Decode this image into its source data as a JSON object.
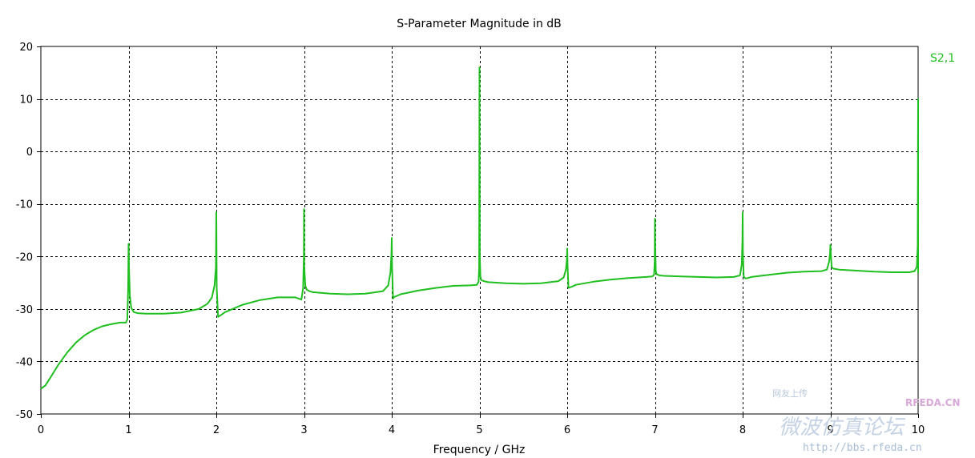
{
  "chart_data": {
    "type": "line",
    "title": "S-Parameter Magnitude in dB",
    "xlabel": "Frequency / GHz",
    "ylabel": "",
    "xlim": [
      0,
      10
    ],
    "ylim": [
      -50,
      20
    ],
    "xticks": [
      0,
      1,
      2,
      3,
      4,
      5,
      6,
      7,
      8,
      9,
      10
    ],
    "yticks": [
      -50,
      -40,
      -30,
      -20,
      -10,
      0,
      10,
      20
    ],
    "grid": true,
    "legend_position": "top-right",
    "series": [
      {
        "name": "S2,1",
        "color": "#1fbf1f",
        "x": [
          0,
          0.05,
          0.1,
          0.2,
          0.3,
          0.4,
          0.5,
          0.6,
          0.7,
          0.8,
          0.9,
          0.97,
          0.985,
          0.995,
          1.0,
          1.005,
          1.015,
          1.03,
          1.06,
          1.1,
          1.2,
          1.4,
          1.6,
          1.8,
          1.9,
          1.95,
          1.98,
          1.995,
          2.0,
          2.005,
          2.02,
          2.05,
          2.1,
          2.3,
          2.5,
          2.7,
          2.9,
          2.97,
          2.99,
          2.998,
          3.0,
          3.003,
          3.015,
          3.03,
          3.06,
          3.1,
          3.3,
          3.5,
          3.7,
          3.9,
          3.96,
          3.985,
          3.996,
          4.0,
          4.004,
          4.015,
          4.03,
          4.06,
          4.1,
          4.3,
          4.5,
          4.7,
          4.9,
          4.97,
          4.99,
          4.996,
          5.0,
          5.004,
          5.01,
          5.02,
          5.05,
          5.1,
          5.3,
          5.5,
          5.7,
          5.9,
          5.96,
          5.985,
          5.995,
          6.0,
          6.005,
          6.015,
          6.03,
          6.06,
          6.1,
          6.3,
          6.5,
          6.7,
          6.9,
          6.97,
          6.99,
          6.997,
          7.0,
          7.003,
          7.01,
          7.02,
          7.05,
          7.1,
          7.3,
          7.5,
          7.7,
          7.9,
          7.97,
          7.99,
          7.997,
          8.0,
          8.003,
          8.012,
          8.03,
          8.06,
          8.1,
          8.3,
          8.5,
          8.7,
          8.9,
          8.96,
          8.985,
          8.995,
          9.0,
          9.005,
          9.015,
          9.03,
          9.06,
          9.1,
          9.3,
          9.5,
          9.7,
          9.9,
          9.96,
          9.985,
          9.995,
          10.0,
          10.005,
          10.015,
          10.03,
          10.06
        ],
        "y": [
          -45.2,
          -44.6,
          -43.3,
          -40.6,
          -38.3,
          -36.4,
          -35.0,
          -34.0,
          -33.3,
          -32.9,
          -32.6,
          -32.6,
          -32.0,
          -26.0,
          -17.6,
          -22.0,
          -27.5,
          -29.8,
          -30.6,
          -30.8,
          -30.9,
          -30.9,
          -30.7,
          -30.0,
          -29.0,
          -27.8,
          -25.5,
          -22.0,
          -11.6,
          -26.0,
          -31.5,
          -31.2,
          -30.6,
          -29.2,
          -28.3,
          -27.8,
          -27.8,
          -28.2,
          -26.0,
          -20.0,
          -11.0,
          -22.0,
          -25.6,
          -26.3,
          -26.6,
          -26.8,
          -27.1,
          -27.2,
          -27.1,
          -26.6,
          -25.5,
          -23.0,
          -19.5,
          -16.5,
          -22.0,
          -28.0,
          -27.7,
          -27.5,
          -27.2,
          -26.5,
          -26.0,
          -25.6,
          -25.5,
          -25.4,
          -24.8,
          -22.0,
          16.0,
          -20.0,
          -23.8,
          -24.5,
          -24.7,
          -24.9,
          -25.1,
          -25.2,
          -25.1,
          -24.7,
          -24.0,
          -22.5,
          -20.8,
          -18.5,
          -22.0,
          -26.0,
          -25.9,
          -25.7,
          -25.4,
          -24.8,
          -24.4,
          -24.1,
          -23.9,
          -23.8,
          -23.5,
          -21.0,
          -12.8,
          -18.0,
          -22.8,
          -23.4,
          -23.6,
          -23.7,
          -23.8,
          -23.9,
          -24.0,
          -23.9,
          -23.6,
          -21.5,
          -17.0,
          -11.6,
          -19.0,
          -23.8,
          -24.2,
          -24.1,
          -23.9,
          -23.5,
          -23.1,
          -22.9,
          -22.8,
          -22.5,
          -21.0,
          -19.5,
          -17.8,
          -19.5,
          -22.0,
          -22.3,
          -22.4,
          -22.5,
          -22.7,
          -22.9,
          -23.0,
          -23.0,
          -22.8,
          -22.0,
          -18.0,
          10.0,
          -18.0,
          -22.5,
          -23.0,
          -23.2
        ]
      }
    ]
  },
  "watermark": {
    "line1": "网友上传",
    "brand": "RFEDA.CN",
    "chinese": "微波仿真论坛",
    "url": "http://bbs.rfeda.cn"
  }
}
